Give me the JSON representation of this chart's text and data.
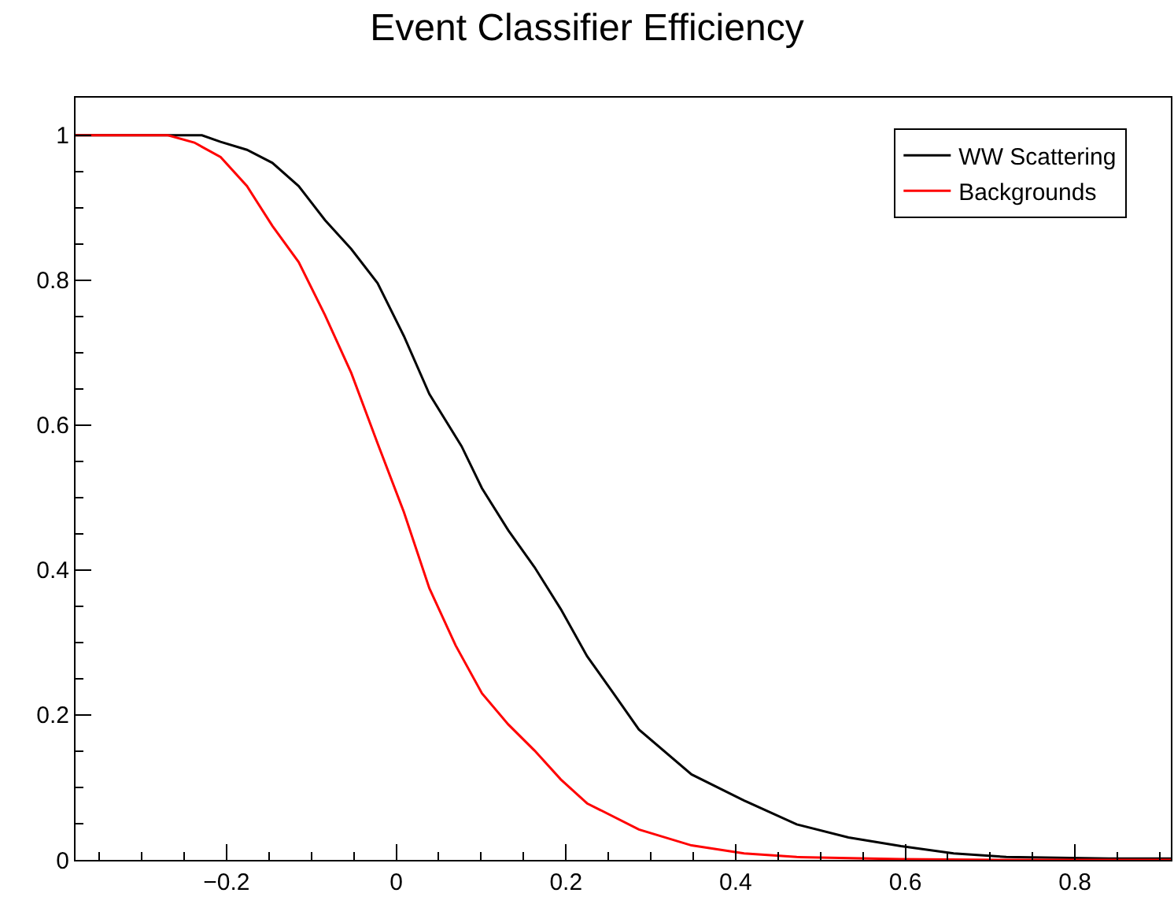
{
  "chart_data": {
    "type": "line",
    "title": "Event Classifier Efficiency",
    "legend": "top right",
    "marker": "none",
    "line_style": "solid",
    "xlim": [
      -0.378,
      0.913
    ],
    "ylim": [
      0,
      1.052
    ],
    "xticks": [
      {
        "value": -0.2,
        "label": "−0.2"
      },
      0,
      0.2,
      0.4,
      0.6,
      0.8
    ],
    "yticks": [
      0,
      0.2,
      0.4,
      0.6,
      0.8,
      1
    ],
    "series": [
      {
        "name": "WW Scattering",
        "color": "#000000",
        "x": [
          -0.378,
          -0.229,
          -0.207,
          -0.176,
          -0.146,
          -0.115,
          -0.084,
          -0.053,
          -0.022,
          0.009,
          0.039,
          0.077,
          0.101,
          0.132,
          0.163,
          0.194,
          0.225,
          0.256,
          0.286,
          0.348,
          0.41,
          0.472,
          0.533,
          0.595,
          0.657,
          0.719,
          0.84,
          0.913
        ],
        "values": [
          1,
          1,
          0.991,
          0.98,
          0.962,
          0.93,
          0.883,
          0.843,
          0.796,
          0.723,
          0.643,
          0.571,
          0.513,
          0.455,
          0.404,
          0.346,
          0.281,
          0.23,
          0.18,
          0.118,
          0.082,
          0.049,
          0.031,
          0.019,
          0.009,
          0.004,
          0.002,
          0.002
        ]
      },
      {
        "name": "Backgrounds",
        "color": "#ff0000",
        "x": [
          -0.378,
          -0.269,
          -0.238,
          -0.207,
          -0.176,
          -0.146,
          -0.115,
          -0.084,
          -0.053,
          -0.022,
          0.009,
          0.039,
          0.07,
          0.101,
          0.132,
          0.163,
          0.194,
          0.225,
          0.286,
          0.348,
          0.41,
          0.472,
          0.595,
          0.719,
          0.913
        ],
        "values": [
          1,
          1,
          0.99,
          0.97,
          0.93,
          0.875,
          0.825,
          0.752,
          0.672,
          0.575,
          0.48,
          0.375,
          0.296,
          0.23,
          0.187,
          0.151,
          0.111,
          0.078,
          0.042,
          0.02,
          0.009,
          0.004,
          0.001,
          0,
          0
        ]
      }
    ]
  }
}
